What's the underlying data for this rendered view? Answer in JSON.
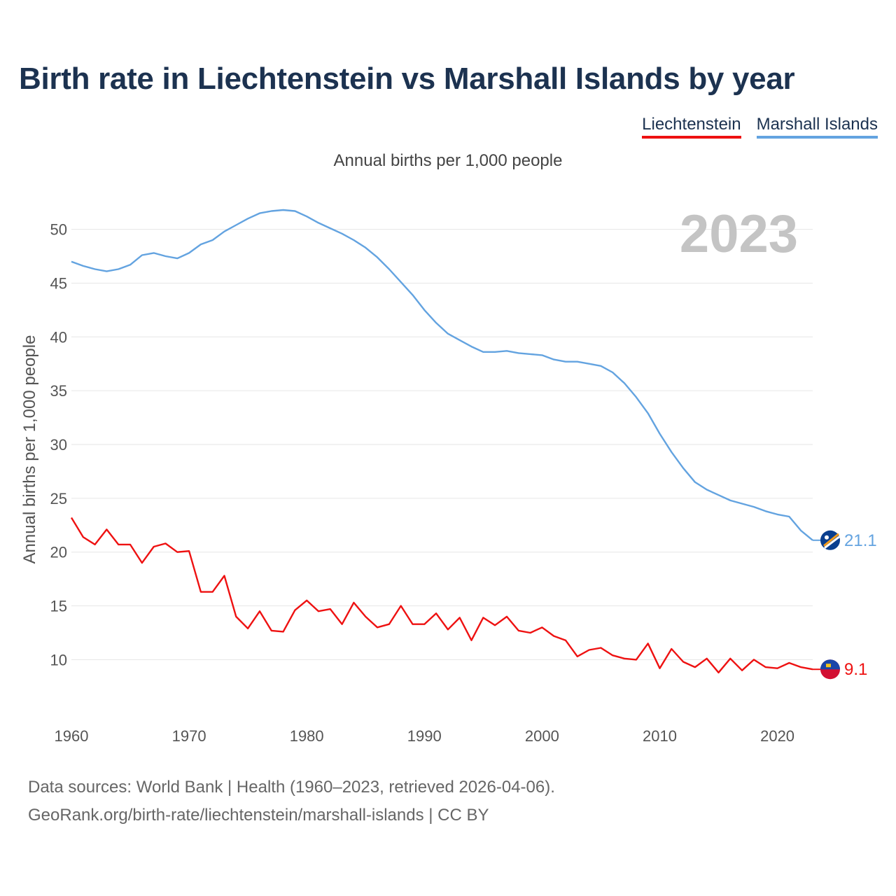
{
  "title": "Birth rate in Liechtenstein vs Marshall Islands by year",
  "subtitle": "Annual births per 1,000 people",
  "footer": {
    "line1": "Data sources: World Bank | Health (1960–2023, retrieved 2026-04-06).",
    "line2": "GeoRank.org/birth-rate/liechtenstein/marshall-islands | CC BY"
  },
  "chart_data": {
    "type": "line",
    "title": "Birth rate in Liechtenstein vs Marshall Islands by year",
    "ylabel": "Annual births per 1,000 people",
    "xlabel": "",
    "year_label": "2023",
    "xlim": [
      1960,
      2023
    ],
    "ylim": [
      5.6,
      54.4
    ],
    "x_ticks": [
      1960,
      1970,
      1980,
      1990,
      2000,
      2010,
      2020
    ],
    "y_ticks": [
      10,
      15,
      20,
      25,
      30,
      35,
      40,
      45,
      50
    ],
    "grid": true,
    "legend_position": "top-right",
    "x": [
      1960,
      1961,
      1962,
      1963,
      1964,
      1965,
      1966,
      1967,
      1968,
      1969,
      1970,
      1971,
      1972,
      1973,
      1974,
      1975,
      1976,
      1977,
      1978,
      1979,
      1980,
      1981,
      1982,
      1983,
      1984,
      1985,
      1986,
      1987,
      1988,
      1989,
      1990,
      1991,
      1992,
      1993,
      1994,
      1995,
      1996,
      1997,
      1998,
      1999,
      2000,
      2001,
      2002,
      2003,
      2004,
      2005,
      2006,
      2007,
      2008,
      2009,
      2010,
      2011,
      2012,
      2013,
      2014,
      2015,
      2016,
      2017,
      2018,
      2019,
      2020,
      2021,
      2022,
      2023
    ],
    "series": [
      {
        "name": "Liechtenstein",
        "color": "#ee1111",
        "end_label": "9.1",
        "values": [
          23.2,
          21.4,
          20.7,
          22.1,
          20.7,
          20.7,
          19.0,
          20.5,
          20.8,
          20.0,
          20.1,
          16.3,
          16.3,
          17.8,
          14.0,
          12.9,
          14.5,
          12.7,
          12.6,
          14.6,
          15.5,
          14.5,
          14.7,
          13.3,
          15.3,
          14.0,
          13.0,
          13.3,
          15.0,
          13.3,
          13.3,
          14.3,
          12.8,
          13.9,
          11.8,
          13.9,
          13.2,
          14.0,
          12.7,
          12.5,
          13.0,
          12.2,
          11.8,
          10.3,
          10.9,
          11.1,
          10.4,
          10.1,
          10.0,
          11.5,
          9.2,
          11.0,
          9.8,
          9.3,
          10.1,
          8.8,
          10.1,
          9.0,
          10.0,
          9.3,
          9.2,
          9.7,
          9.3,
          9.1
        ]
      },
      {
        "name": "Marshall Islands",
        "color": "#63a3e0",
        "end_label": "21.1",
        "values": [
          47.0,
          46.6,
          46.3,
          46.1,
          46.3,
          46.7,
          47.6,
          47.8,
          47.5,
          47.3,
          47.8,
          48.6,
          49.0,
          49.8,
          50.4,
          51.0,
          51.5,
          51.7,
          51.8,
          51.7,
          51.2,
          50.6,
          50.1,
          49.6,
          49.0,
          48.3,
          47.4,
          46.3,
          45.1,
          43.9,
          42.5,
          41.3,
          40.3,
          39.7,
          39.1,
          38.6,
          38.6,
          38.7,
          38.5,
          38.4,
          38.3,
          37.9,
          37.7,
          37.7,
          37.5,
          37.3,
          36.7,
          35.7,
          34.4,
          32.9,
          31.0,
          29.3,
          27.8,
          26.5,
          25.8,
          25.3,
          24.8,
          24.5,
          24.2,
          23.8,
          23.5,
          23.3,
          22.0,
          21.1
        ]
      }
    ]
  }
}
